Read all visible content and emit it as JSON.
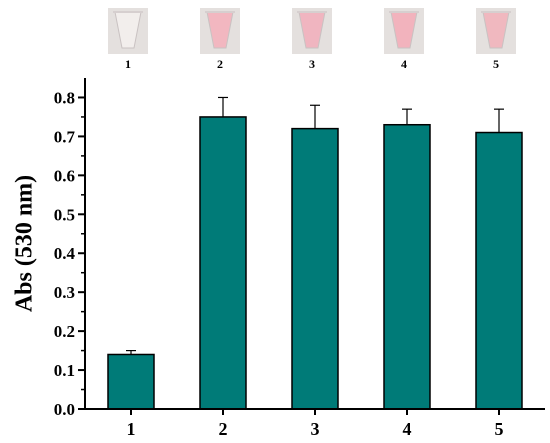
{
  "chart_data": {
    "type": "bar",
    "categories": [
      "1",
      "2",
      "3",
      "4",
      "5"
    ],
    "values": [
      0.14,
      0.75,
      0.72,
      0.73,
      0.71
    ],
    "errors": [
      0.01,
      0.05,
      0.06,
      0.04,
      0.06
    ],
    "title": "",
    "xlabel": "",
    "ylabel": "Abs (530 nm)",
    "ylim": [
      0,
      0.85
    ],
    "yticks": [
      "0.0",
      "0.1",
      "0.2",
      "0.3",
      "0.4",
      "0.5",
      "0.6",
      "0.7",
      "0.8"
    ],
    "grid": false,
    "legend": "none",
    "bar_color": "#007b78",
    "photo_labels": [
      "1",
      "2",
      "3",
      "4",
      "5"
    ],
    "photo_colors": [
      "#f2eeec",
      "#f2b7c0",
      "#f0b5c0",
      "#f2b3bd",
      "#f0b8bf"
    ]
  }
}
